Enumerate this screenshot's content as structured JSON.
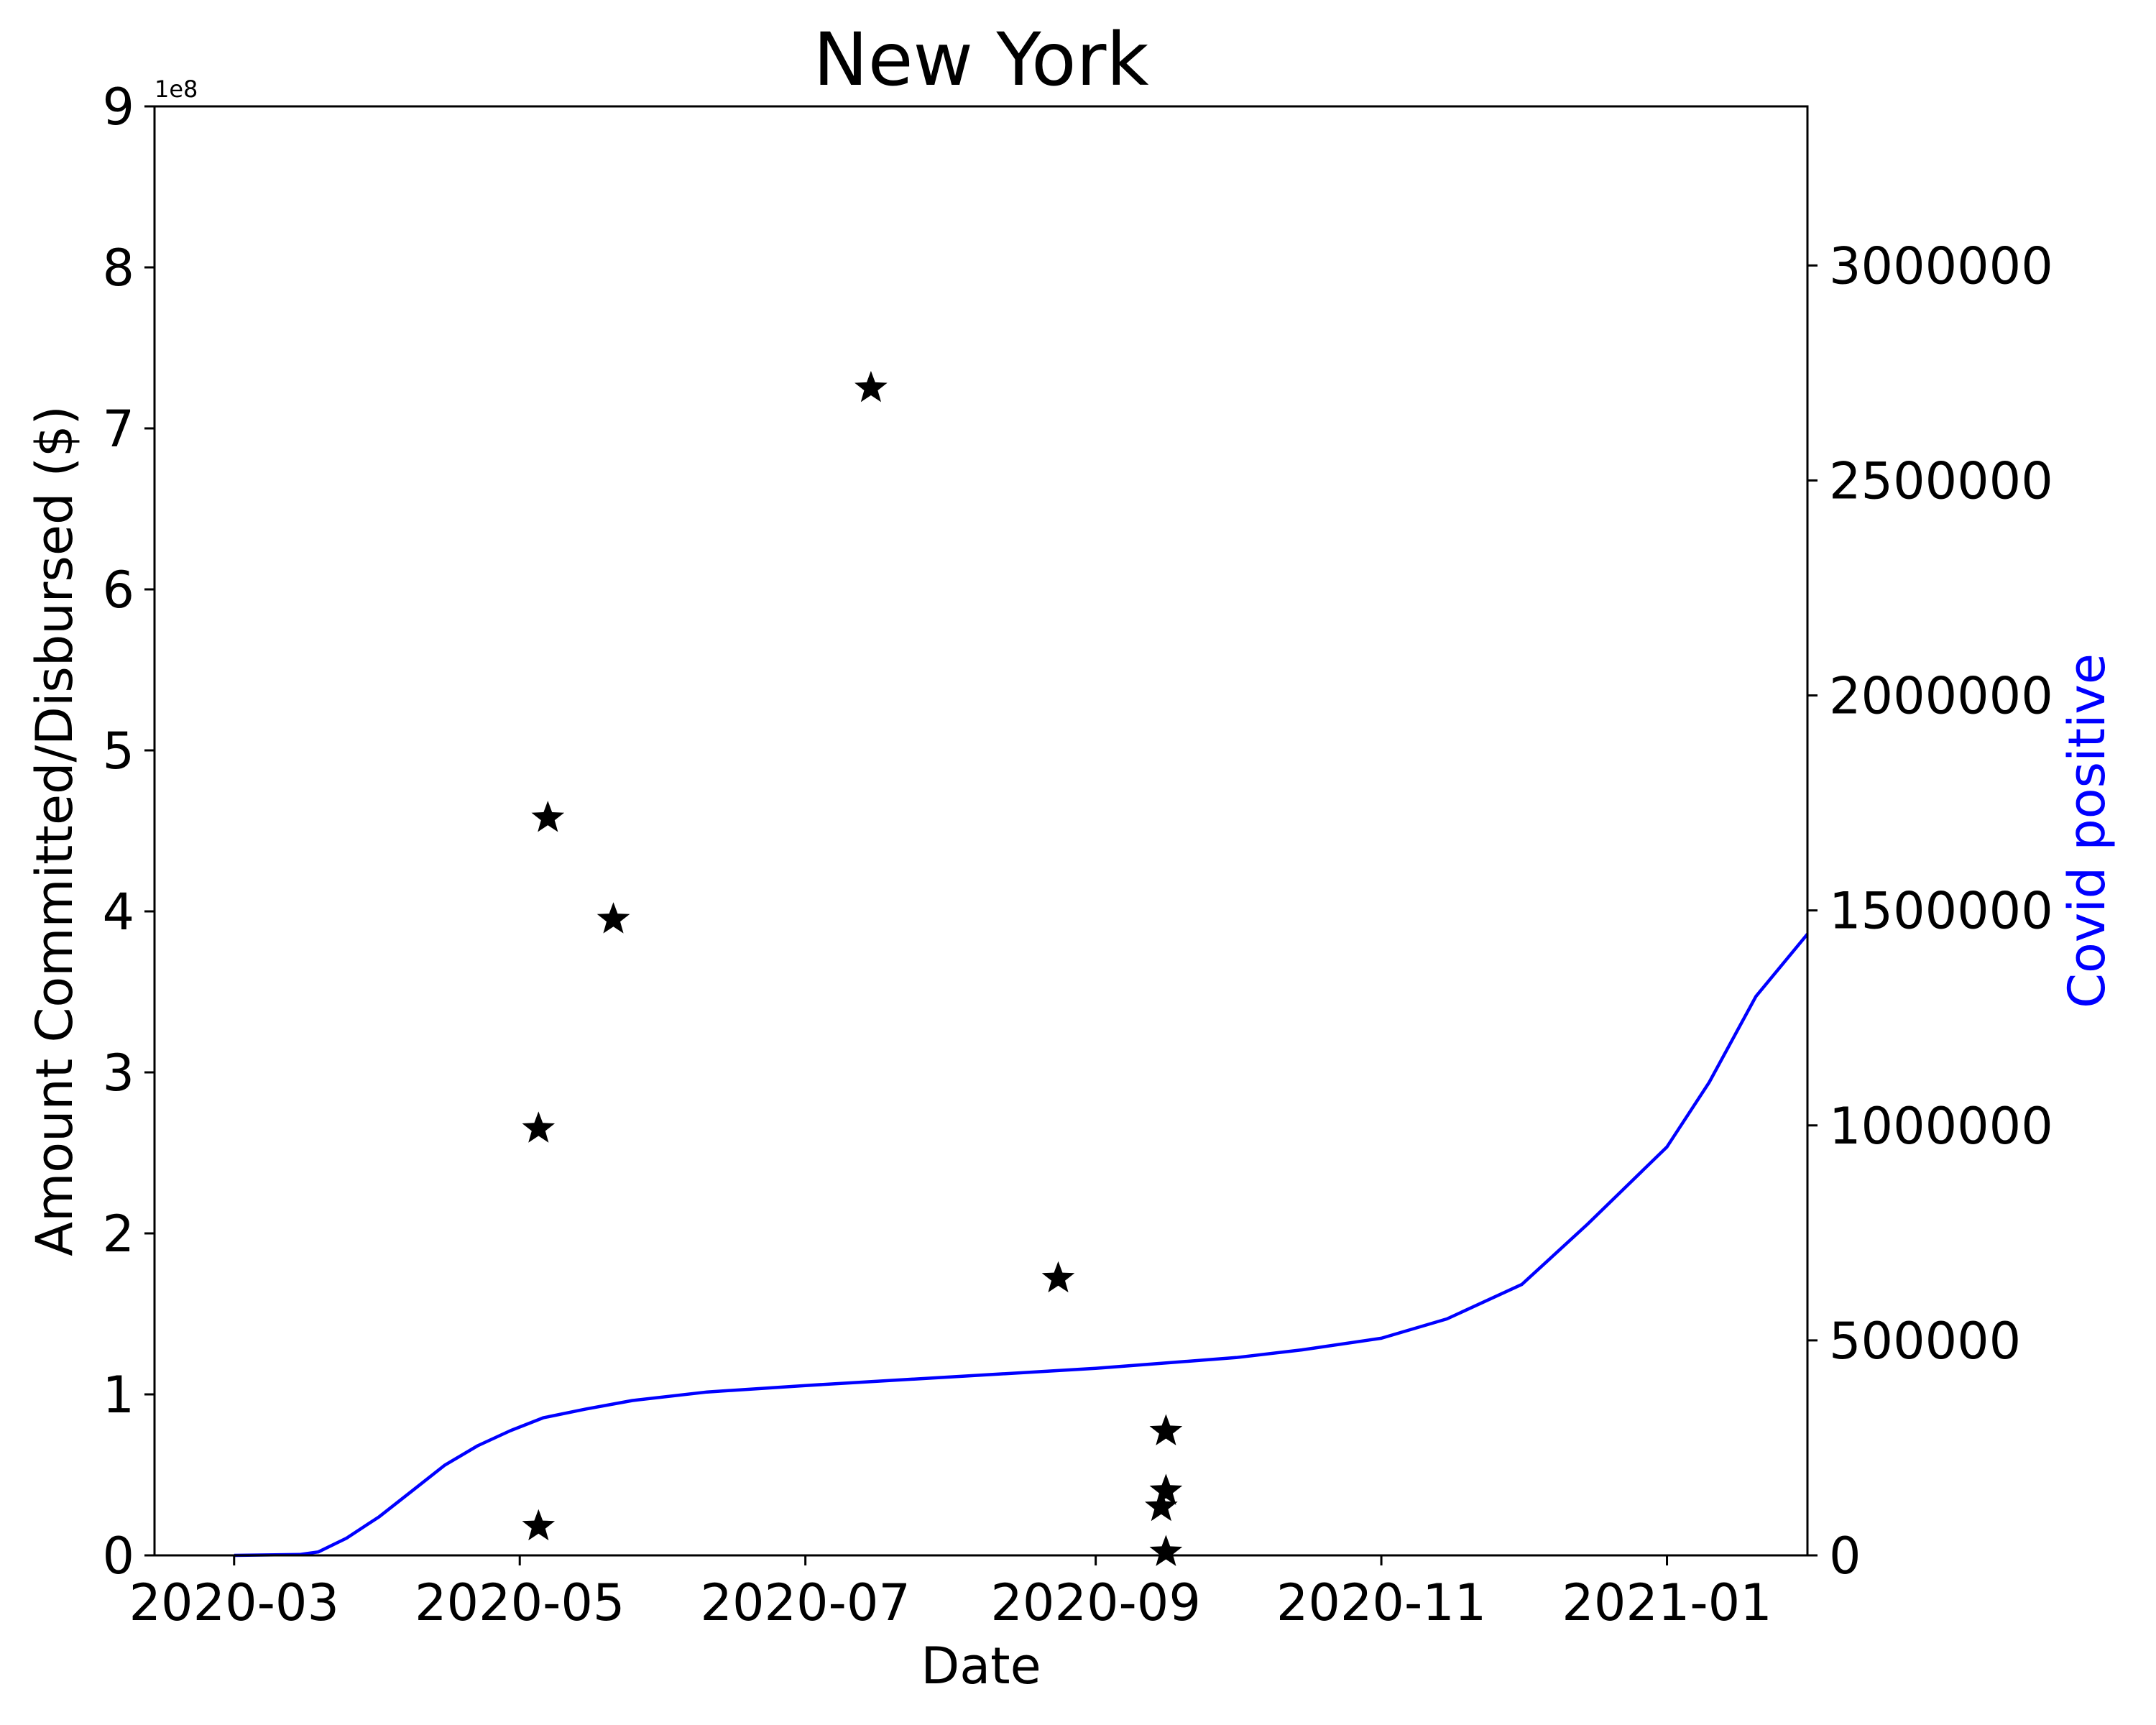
{
  "chart_data": {
    "type": "scatter",
    "title": "New York",
    "xlabel": "Date",
    "ylabel": "Amount Committed/Disbursed ($)",
    "y2label": "Covid positive",
    "y_offset_text": "1e8",
    "xlim": [
      "2020-02-13",
      "2021-01-31"
    ],
    "ylim": [
      0,
      9
    ],
    "y2lim": [
      0,
      3370000
    ],
    "colors": {
      "scatter": "#000000",
      "line": "#0000ff",
      "y2label": "#0000ff"
    },
    "x_ticks": [
      {
        "date": "2020-03-01",
        "label": "2020-03"
      },
      {
        "date": "2020-05-01",
        "label": "2020-05"
      },
      {
        "date": "2020-07-01",
        "label": "2020-07"
      },
      {
        "date": "2020-09-01",
        "label": "2020-09"
      },
      {
        "date": "2020-11-01",
        "label": "2020-11"
      },
      {
        "date": "2021-01-01",
        "label": "2021-01"
      }
    ],
    "y_ticks": [
      {
        "value": 0,
        "label": "0"
      },
      {
        "value": 1,
        "label": "1"
      },
      {
        "value": 2,
        "label": "2"
      },
      {
        "value": 3,
        "label": "3"
      },
      {
        "value": 4,
        "label": "4"
      },
      {
        "value": 5,
        "label": "5"
      },
      {
        "value": 6,
        "label": "6"
      },
      {
        "value": 7,
        "label": "7"
      },
      {
        "value": 8,
        "label": "8"
      },
      {
        "value": 9,
        "label": "9"
      }
    ],
    "y2_ticks": [
      {
        "value": 0,
        "label": "0"
      },
      {
        "value": 500000,
        "label": "500000"
      },
      {
        "value": 1000000,
        "label": "1000000"
      },
      {
        "value": 1500000,
        "label": "1500000"
      },
      {
        "value": 2000000,
        "label": "2000000"
      },
      {
        "value": 2500000,
        "label": "2500000"
      },
      {
        "value": 3000000,
        "label": "3000000"
      }
    ],
    "scatter_points": [
      {
        "date": "2020-05-05",
        "value": 0.18
      },
      {
        "date": "2020-05-05",
        "value": 2.65
      },
      {
        "date": "2020-05-07",
        "value": 4.58
      },
      {
        "date": "2020-05-21",
        "value": 3.95
      },
      {
        "date": "2020-07-15",
        "value": 7.25
      },
      {
        "date": "2020-08-24",
        "value": 1.72
      },
      {
        "date": "2020-09-15",
        "value": 0.3
      },
      {
        "date": "2020-09-16",
        "value": 0.02
      },
      {
        "date": "2020-09-16",
        "value": 0.4
      },
      {
        "date": "2020-09-16",
        "value": 0.77
      }
    ],
    "line_series": {
      "name": "Covid positive",
      "points": [
        [
          "2020-03-01",
          0
        ],
        [
          "2020-03-15",
          2000
        ],
        [
          "2020-03-19",
          8000
        ],
        [
          "2020-03-25",
          40000
        ],
        [
          "2020-04-01",
          90000
        ],
        [
          "2020-04-08",
          150000
        ],
        [
          "2020-04-15",
          210000
        ],
        [
          "2020-04-22",
          255000
        ],
        [
          "2020-04-29",
          290000
        ],
        [
          "2020-05-06",
          320000
        ],
        [
          "2020-05-15",
          340000
        ],
        [
          "2020-05-25",
          360000
        ],
        [
          "2020-06-10",
          380000
        ],
        [
          "2020-07-01",
          395000
        ],
        [
          "2020-08-01",
          415000
        ],
        [
          "2020-09-01",
          435000
        ],
        [
          "2020-10-01",
          460000
        ],
        [
          "2020-10-15",
          478000
        ],
        [
          "2020-11-01",
          505000
        ],
        [
          "2020-11-15",
          550000
        ],
        [
          "2020-12-01",
          630000
        ],
        [
          "2020-12-15",
          770000
        ],
        [
          "2021-01-01",
          950000
        ],
        [
          "2021-01-10",
          1100000
        ],
        [
          "2021-01-20",
          1300000
        ],
        [
          "2021-01-31",
          1445000
        ]
      ]
    }
  }
}
